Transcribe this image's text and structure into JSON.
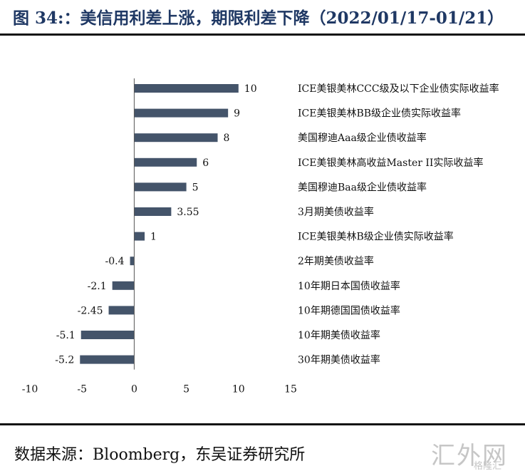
{
  "header": {
    "title": "图 34:：美信用利差上涨，期限利差下降（2022/01/17-01/21）"
  },
  "footer": {
    "source": "数据来源：Bloomberg，东吴证券研究所"
  },
  "watermark": {
    "text": "汇外网",
    "subtext": "格隆汇"
  },
  "chart_data": {
    "type": "bar",
    "orientation": "horizontal",
    "categories": [
      "ICE美银美林CCC级及以下企业债实际收益率",
      "ICE美银美林BB级企业债实际收益率",
      "美国穆迪Aaa级企业债收益率",
      "ICE美银美林高收益Master II实际收益率",
      "美国穆迪Baa级企业债收益率",
      "3月期美债收益率",
      "ICE美银美林B级企业债实际收益率",
      "2年期美债收益率",
      "10年期日本国债收益率",
      "10年期德国国债收益率",
      "10年期美债收益率",
      "30年期美债收益率"
    ],
    "values": [
      10,
      9,
      8,
      6,
      5,
      3.55,
      1,
      -0.4,
      -2.1,
      -2.45,
      -5.1,
      -5.2
    ],
    "data_labels": [
      "10",
      "9",
      "8",
      "6",
      "5",
      "3.55",
      "1",
      "-0.4",
      "-2.1",
      "-2.45",
      "-5.1",
      "-5.2"
    ],
    "xlim": [
      -10,
      15
    ],
    "xticks": [
      -10,
      -5,
      0,
      5,
      10,
      15
    ],
    "xtick_labels": [
      "-10",
      "-5",
      "0",
      "5",
      "10",
      "15"
    ],
    "bar_color": "#44546a",
    "grid": false,
    "legend": "none"
  }
}
